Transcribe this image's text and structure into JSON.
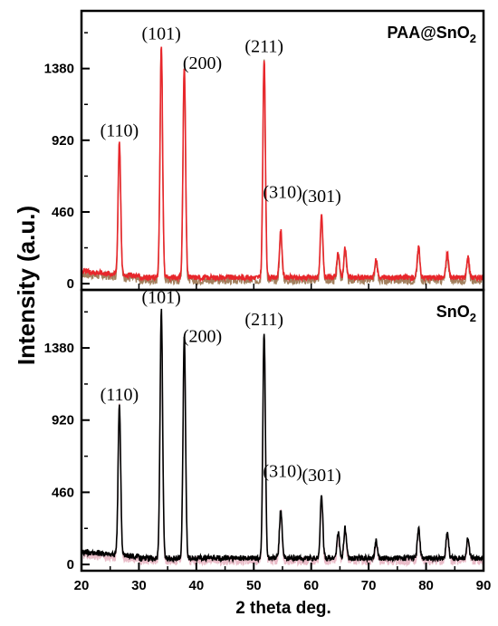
{
  "chart_data": {
    "type": "line",
    "xlabel": "2 theta deg.",
    "ylabel": "Intensity (a.u.)",
    "xlim": [
      20,
      90
    ],
    "x_ticks": [
      "20",
      "30",
      "40",
      "50",
      "60",
      "70",
      "80",
      "90"
    ],
    "panels": [
      {
        "title_main": "PAA@SnO",
        "title_sub": "2",
        "color": "#e8262b",
        "shadow_color": "#7a4a1a",
        "ylim": [
          -40,
          1750
        ],
        "y_ticks": [
          "0",
          "460",
          "920",
          "1380"
        ],
        "baseline": 40,
        "peaks": [
          {
            "x": 26.6,
            "y": 860,
            "label": "(110)"
          },
          {
            "x": 33.9,
            "y": 1480,
            "label": "(101)"
          },
          {
            "x": 37.9,
            "y": 1360,
            "label": "(200)"
          },
          {
            "x": 51.8,
            "y": 1400,
            "label": "(211)"
          },
          {
            "x": 54.7,
            "y": 300,
            "label": "(310)"
          },
          {
            "x": 61.8,
            "y": 390,
            "label": "(301)"
          },
          {
            "x": 64.7,
            "y": 160,
            "label": ""
          },
          {
            "x": 65.9,
            "y": 190,
            "label": ""
          },
          {
            "x": 71.3,
            "y": 110,
            "label": ""
          },
          {
            "x": 78.7,
            "y": 200,
            "label": ""
          },
          {
            "x": 83.7,
            "y": 160,
            "label": ""
          },
          {
            "x": 87.3,
            "y": 130,
            "label": ""
          }
        ]
      },
      {
        "title_main": "SnO",
        "title_sub": "2",
        "color": "#000000",
        "shadow_color": "#e0a0b0",
        "ylim": [
          -40,
          1750
        ],
        "y_ticks": [
          "0",
          "460",
          "920",
          "1380"
        ],
        "baseline": 40,
        "peaks": [
          {
            "x": 26.6,
            "y": 960,
            "label": "(110)"
          },
          {
            "x": 33.9,
            "y": 1580,
            "label": "(101)"
          },
          {
            "x": 37.9,
            "y": 1400,
            "label": "(200)"
          },
          {
            "x": 51.8,
            "y": 1440,
            "label": "(211)"
          },
          {
            "x": 54.7,
            "y": 310,
            "label": "(310)"
          },
          {
            "x": 61.8,
            "y": 400,
            "label": "(301)"
          },
          {
            "x": 64.7,
            "y": 160,
            "label": ""
          },
          {
            "x": 65.9,
            "y": 190,
            "label": ""
          },
          {
            "x": 71.3,
            "y": 110,
            "label": ""
          },
          {
            "x": 78.7,
            "y": 190,
            "label": ""
          },
          {
            "x": 83.7,
            "y": 170,
            "label": ""
          },
          {
            "x": 87.3,
            "y": 130,
            "label": ""
          }
        ]
      }
    ]
  }
}
